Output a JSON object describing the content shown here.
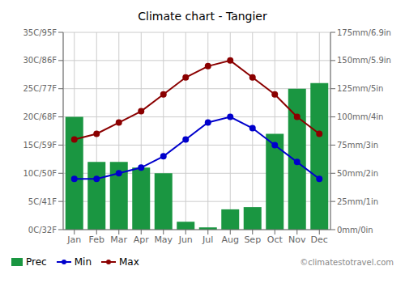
{
  "chart_data": {
    "type": "bar",
    "title": "Climate chart - Tangier",
    "categories": [
      "Jan",
      "Feb",
      "Mar",
      "Apr",
      "May",
      "Jun",
      "Jul",
      "Aug",
      "Sep",
      "Oct",
      "Nov",
      "Dec"
    ],
    "series": [
      {
        "name": "Prec",
        "type": "bar",
        "axis": "y2",
        "color": "#1a9641",
        "values": [
          100,
          60,
          60,
          55,
          50,
          7,
          2,
          18,
          20,
          85,
          125,
          130
        ]
      },
      {
        "name": "Min",
        "type": "line",
        "color": "#0000cc",
        "marker": "circle",
        "values": [
          9,
          9,
          10,
          11,
          13,
          16,
          19,
          20,
          18,
          15,
          12,
          9
        ]
      },
      {
        "name": "Max",
        "type": "line",
        "color": "#8b0000",
        "marker": "circle",
        "values": [
          16,
          17,
          19,
          21,
          24,
          27,
          29,
          30,
          27,
          24,
          20,
          17
        ]
      }
    ],
    "ylim": [
      0,
      35
    ],
    "yticks": [
      {
        "value": 0,
        "label": "0C/32F"
      },
      {
        "value": 5,
        "label": "5C/41F"
      },
      {
        "value": 10,
        "label": "10C/50F"
      },
      {
        "value": 15,
        "label": "15C/59F"
      },
      {
        "value": 20,
        "label": "20C/68F"
      },
      {
        "value": 25,
        "label": "25C/77F"
      },
      {
        "value": 30,
        "label": "30C/86F"
      },
      {
        "value": 35,
        "label": "35C/95F"
      }
    ],
    "y2lim": [
      0,
      175
    ],
    "y2ticks": [
      {
        "value": 0,
        "label": "0mm/0in"
      },
      {
        "value": 25,
        "label": "25mm/1in"
      },
      {
        "value": 50,
        "label": "50mm/2in"
      },
      {
        "value": 75,
        "label": "75mm/3in"
      },
      {
        "value": 100,
        "label": "100mm/4in"
      },
      {
        "value": 125,
        "label": "125mm/5in"
      },
      {
        "value": 150,
        "label": "150mm/5.9in"
      },
      {
        "value": 175,
        "label": "175mm/6.9in"
      }
    ],
    "grid": true,
    "legend": "lower left",
    "annotations": [
      "©climatestotravel.com"
    ]
  }
}
